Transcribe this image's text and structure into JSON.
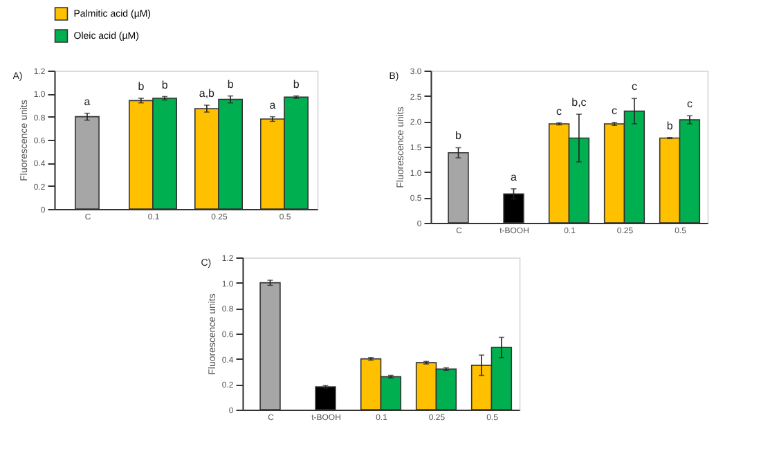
{
  "chart_data": [
    {
      "type": "bar",
      "title": "A)",
      "ylabel": "Fluorescence units",
      "categories": [
        "C",
        "0.1",
        "0.25",
        "0.5"
      ],
      "ylim": [
        0,
        1.2
      ],
      "yticks": [
        0,
        0.2,
        0.4,
        0.6,
        0.8,
        {
          "value": 1,
          "label": "1.0"
        },
        1.2
      ],
      "grid": false,
      "legend": "top",
      "series": [
        {
          "color": "#a6a6a6",
          "values": [
            0.8,
            null,
            null,
            null
          ],
          "errors": [
            0.03,
            null,
            null,
            null
          ]
        },
        {
          "name": "Palmitic acid (µM)",
          "color": "#ffc000",
          "values": [
            null,
            0.94,
            0.87,
            0.78
          ],
          "errors": [
            null,
            0.02,
            0.03,
            0.02
          ]
        },
        {
          "name": "Oleic acid (µM)",
          "color": "#00b050",
          "values": [
            null,
            0.96,
            0.95,
            0.97
          ],
          "errors": [
            null,
            0.015,
            0.03,
            0.01
          ]
        }
      ],
      "annotations": [
        {
          "text": "a",
          "x": "C",
          "y": 0.8
        },
        {
          "text": "b",
          "x": "0.1",
          "y": 0.94
        },
        {
          "text": "b",
          "x": "0.1",
          "y": 0.96
        },
        {
          "text": "a,b",
          "x": "0.25",
          "y": 0.87
        },
        {
          "text": "b",
          "x": "0.25",
          "y": 0.95
        },
        {
          "text": "a",
          "x": "0.5",
          "y": 0.78
        },
        {
          "text": "b",
          "x": "0.5",
          "y": 0.97
        }
      ]
    },
    {
      "type": "bar",
      "title": "B)",
      "ylabel": "Fluorescence units",
      "categories": [
        "C",
        "t-BOOH",
        "0.1",
        "0.25",
        "0.5"
      ],
      "ylim": [
        0,
        3
      ],
      "yticks": [
        0,
        0.5,
        {
          "value": 1,
          "label": "1.0"
        },
        1.5,
        {
          "value": 2,
          "label": "2.0"
        },
        2.5,
        {
          "value": 3,
          "label": "3.0"
        }
      ],
      "grid": false,
      "legend": false,
      "series": [
        {
          "color": "#a6a6a6",
          "values": [
            1.38,
            null,
            null,
            null,
            null
          ],
          "errors": [
            0.1,
            null,
            null,
            null,
            null
          ]
        },
        {
          "color": "#000000",
          "values": [
            null,
            0.57,
            null,
            null,
            null
          ],
          "errors": [
            null,
            0.1,
            null,
            null,
            null
          ]
        },
        {
          "color": "#ffc000",
          "values": [
            null,
            null,
            1.95,
            1.95,
            1.67
          ],
          "errors": [
            null,
            null,
            0.02,
            0.03,
            0.01
          ]
        },
        {
          "color": "#00b050",
          "values": [
            null,
            null,
            1.67,
            2.2,
            2.03
          ],
          "errors": [
            null,
            null,
            0.47,
            0.25,
            0.08
          ]
        }
      ],
      "annotations": [
        {
          "text": "b",
          "x": "C",
          "y": 1.38
        },
        {
          "text": "a",
          "x": "t-BOOH",
          "y": 0.57
        },
        {
          "text": "c",
          "x": "0.1",
          "y": 1.95
        },
        {
          "text": "b,c",
          "x": "0.1",
          "y": 1.67
        },
        {
          "text": "c",
          "x": "0.25",
          "y": 1.95
        },
        {
          "text": "c",
          "x": "0.25",
          "y": 2.2
        },
        {
          "text": "b",
          "x": "0.5",
          "y": 1.67
        },
        {
          "text": "c",
          "x": "0.5",
          "y": 2.03
        }
      ]
    },
    {
      "type": "bar",
      "title": "C)",
      "ylabel": "Fluorescence units",
      "categories": [
        "C",
        "t-BOOH",
        "0.1",
        "0.25",
        "0.5"
      ],
      "ylim": [
        0,
        1.2
      ],
      "yticks": [
        0,
        0.2,
        0.4,
        0.6,
        0.8,
        {
          "value": 1,
          "label": "1.0"
        },
        1.2
      ],
      "grid": false,
      "legend": false,
      "series": [
        {
          "color": "#a6a6a6",
          "values": [
            1.0,
            null,
            null,
            null,
            null
          ],
          "errors": [
            0.02,
            null,
            null,
            null,
            null
          ]
        },
        {
          "color": "#000000",
          "values": [
            null,
            0.18,
            null,
            null,
            null
          ],
          "errors": [
            null,
            0.01,
            null,
            null,
            null
          ]
        },
        {
          "color": "#ffc000",
          "values": [
            null,
            null,
            0.4,
            0.37,
            0.35
          ],
          "errors": [
            null,
            null,
            0.01,
            0.01,
            0.08
          ]
        },
        {
          "color": "#00b050",
          "values": [
            null,
            null,
            0.26,
            0.32,
            0.49
          ],
          "errors": [
            null,
            null,
            0.01,
            0.01,
            0.08
          ]
        }
      ]
    }
  ]
}
